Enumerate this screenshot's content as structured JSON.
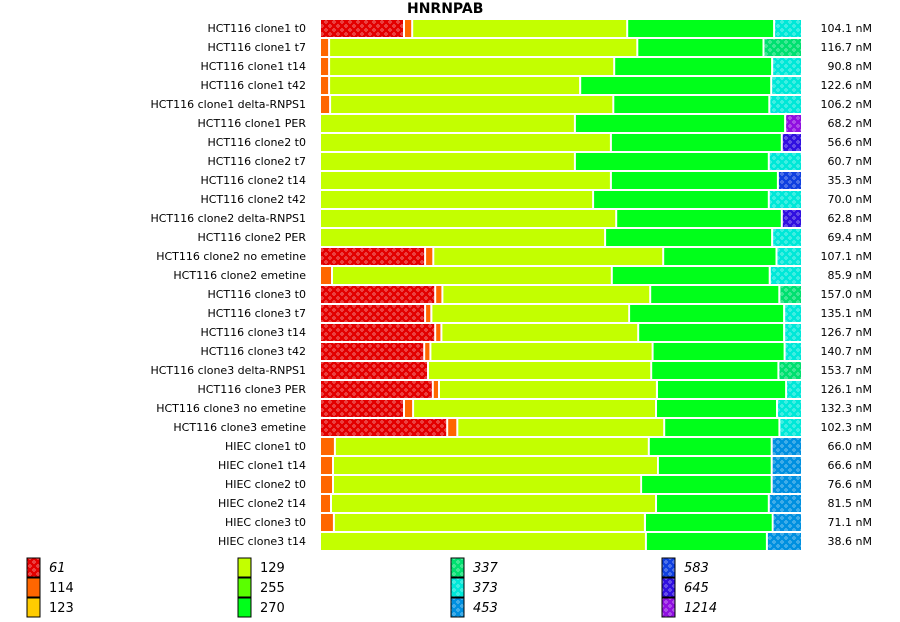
{
  "chart_data": {
    "type": "bar",
    "orientation": "horizontal",
    "stacked": true,
    "normalized": true,
    "title": "HNRNPAB",
    "xlabel": "",
    "ylabel": "",
    "grid": false,
    "legend_position": "bottom",
    "value_unit": "nM",
    "segment_keys": [
      "61",
      "114",
      "123",
      "129",
      "255",
      "270",
      "337",
      "373",
      "453",
      "583",
      "645",
      "1214"
    ],
    "legend": [
      {
        "key": "61",
        "label": "61",
        "color": "#e30000",
        "patterned": true,
        "italic": true
      },
      {
        "key": "114",
        "label": "114",
        "color": "#ff6600",
        "patterned": false,
        "italic": false
      },
      {
        "key": "123",
        "label": "123",
        "color": "#ffcc00",
        "patterned": false,
        "italic": false
      },
      {
        "key": "129",
        "label": "129",
        "color": "#c3ff00",
        "patterned": false,
        "italic": false
      },
      {
        "key": "255",
        "label": "255",
        "color": "#5aff00",
        "patterned": false,
        "italic": false
      },
      {
        "key": "270",
        "label": "270",
        "color": "#00ff1a",
        "patterned": false,
        "italic": false
      },
      {
        "key": "337",
        "label": "337",
        "color": "#00e070",
        "patterned": true,
        "italic": true
      },
      {
        "key": "373",
        "label": "373",
        "color": "#00e8d8",
        "patterned": true,
        "italic": true
      },
      {
        "key": "453",
        "label": "453",
        "color": "#0090e0",
        "patterned": true,
        "italic": true
      },
      {
        "key": "583",
        "label": "583",
        "color": "#1040e0",
        "patterned": true,
        "italic": true
      },
      {
        "key": "645",
        "label": "645",
        "color": "#3010e0",
        "patterned": true,
        "italic": true
      },
      {
        "key": "1214",
        "label": "1214",
        "color": "#9010e0",
        "patterned": true,
        "italic": true
      }
    ],
    "categories": [
      "HCT116 clone1 t0",
      "HCT116 clone1 t7",
      "HCT116 clone1 t14",
      "HCT116 clone1 t42",
      "HCT116 clone1 delta-RNPS1",
      "HCT116 clone1 PER",
      "HCT116 clone2 t0",
      "HCT116 clone2 t7",
      "HCT116 clone2 t14",
      "HCT116 clone2 t42",
      "HCT116 clone2 delta-RNPS1",
      "HCT116 clone2 PER",
      "HCT116 clone2 no emetine",
      "HCT116 clone2 emetine",
      "HCT116 clone3 t0",
      "HCT116 clone3 t7",
      "HCT116 clone3 t14",
      "HCT116 clone3 t42",
      "HCT116 clone3 delta-RNPS1",
      "HCT116 clone3 PER",
      "HCT116 clone3 no emetine",
      "HCT116 clone3 emetine",
      "HIEC clone1 t0",
      "HIEC clone1 t14",
      "HIEC clone2 t0",
      "HIEC clone2 t14",
      "HIEC clone3 t0",
      "HIEC clone3 t14"
    ],
    "totals": [
      "104.1 nM",
      "116.7 nM",
      "90.8 nM",
      "122.6 nM",
      "106.2 nM",
      "68.2 nM",
      "56.6 nM",
      "60.7 nM",
      "35.3 nM",
      "70.0 nM",
      "62.8 nM",
      "69.4 nM",
      "107.1 nM",
      "85.9 nM",
      "157.0 nM",
      "135.1 nM",
      "126.7 nM",
      "140.7 nM",
      "153.7 nM",
      "126.1 nM",
      "132.3 nM",
      "102.3 nM",
      "66.0 nM",
      "66.6 nM",
      "76.6 nM",
      "81.5 nM",
      "71.1 nM",
      "38.6 nM"
    ],
    "rows": [
      [
        {
          "k": "61",
          "f": 0.175
        },
        {
          "k": "114",
          "f": 0.017
        },
        {
          "k": "129",
          "f": 0.448
        },
        {
          "k": "270",
          "f": 0.306
        },
        {
          "k": "373",
          "f": 0.054
        }
      ],
      [
        {
          "k": "114",
          "f": 0.019
        },
        {
          "k": "129",
          "f": 0.642
        },
        {
          "k": "270",
          "f": 0.263
        },
        {
          "k": "337",
          "f": 0.076
        }
      ],
      [
        {
          "k": "114",
          "f": 0.019
        },
        {
          "k": "129",
          "f": 0.594
        },
        {
          "k": "270",
          "f": 0.329
        },
        {
          "k": "373",
          "f": 0.058
        }
      ],
      [
        {
          "k": "114",
          "f": 0.019
        },
        {
          "k": "129",
          "f": 0.523
        },
        {
          "k": "270",
          "f": 0.398
        },
        {
          "k": "373",
          "f": 0.06
        }
      ],
      [
        {
          "k": "114",
          "f": 0.021
        },
        {
          "k": "129",
          "f": 0.59
        },
        {
          "k": "270",
          "f": 0.325
        },
        {
          "k": "373",
          "f": 0.064
        }
      ],
      [
        {
          "k": "129",
          "f": 0.531
        },
        {
          "k": "270",
          "f": 0.438
        },
        {
          "k": "1214",
          "f": 0.031
        }
      ],
      [
        {
          "k": "129",
          "f": 0.606
        },
        {
          "k": "270",
          "f": 0.356
        },
        {
          "k": "645",
          "f": 0.038
        }
      ],
      [
        {
          "k": "129",
          "f": 0.531
        },
        {
          "k": "270",
          "f": 0.404
        },
        {
          "k": "373",
          "f": 0.065
        }
      ],
      [
        {
          "k": "129",
          "f": 0.606
        },
        {
          "k": "270",
          "f": 0.348
        },
        {
          "k": "583",
          "f": 0.046
        }
      ],
      [
        {
          "k": "129",
          "f": 0.569
        },
        {
          "k": "270",
          "f": 0.366
        },
        {
          "k": "373",
          "f": 0.065
        }
      ],
      [
        {
          "k": "129",
          "f": 0.617
        },
        {
          "k": "270",
          "f": 0.345
        },
        {
          "k": "645",
          "f": 0.038
        }
      ],
      [
        {
          "k": "129",
          "f": 0.594
        },
        {
          "k": "270",
          "f": 0.348
        },
        {
          "k": "373",
          "f": 0.058
        }
      ],
      [
        {
          "k": "61",
          "f": 0.219
        },
        {
          "k": "114",
          "f": 0.017
        },
        {
          "k": "129",
          "f": 0.479
        },
        {
          "k": "270",
          "f": 0.236
        },
        {
          "k": "373",
          "f": 0.049
        }
      ],
      [
        {
          "k": "114",
          "f": 0.025
        },
        {
          "k": "129",
          "f": 0.583
        },
        {
          "k": "270",
          "f": 0.329
        },
        {
          "k": "373",
          "f": 0.063
        }
      ],
      [
        {
          "k": "61",
          "f": 0.24
        },
        {
          "k": "114",
          "f": 0.015
        },
        {
          "k": "129",
          "f": 0.433
        },
        {
          "k": "270",
          "f": 0.269
        },
        {
          "k": "337",
          "f": 0.043
        }
      ],
      [
        {
          "k": "61",
          "f": 0.219
        },
        {
          "k": "114",
          "f": 0.013
        },
        {
          "k": "129",
          "f": 0.412
        },
        {
          "k": "270",
          "f": 0.323
        },
        {
          "k": "373",
          "f": 0.033
        }
      ],
      [
        {
          "k": "61",
          "f": 0.24
        },
        {
          "k": "114",
          "f": 0.013
        },
        {
          "k": "129",
          "f": 0.41
        },
        {
          "k": "270",
          "f": 0.304
        },
        {
          "k": "373",
          "f": 0.033
        }
      ],
      [
        {
          "k": "61",
          "f": 0.217
        },
        {
          "k": "114",
          "f": 0.013
        },
        {
          "k": "129",
          "f": 0.463
        },
        {
          "k": "270",
          "f": 0.275
        },
        {
          "k": "373",
          "f": 0.032
        }
      ],
      [
        {
          "k": "61",
          "f": 0.225
        },
        {
          "k": "129",
          "f": 0.465
        },
        {
          "k": "270",
          "f": 0.265
        },
        {
          "k": "337",
          "f": 0.045
        }
      ],
      [
        {
          "k": "61",
          "f": 0.235
        },
        {
          "k": "114",
          "f": 0.013
        },
        {
          "k": "129",
          "f": 0.454
        },
        {
          "k": "270",
          "f": 0.269
        },
        {
          "k": "373",
          "f": 0.029
        }
      ],
      [
        {
          "k": "61",
          "f": 0.175
        },
        {
          "k": "114",
          "f": 0.019
        },
        {
          "k": "129",
          "f": 0.506
        },
        {
          "k": "270",
          "f": 0.252
        },
        {
          "k": "373",
          "f": 0.048
        }
      ],
      [
        {
          "k": "61",
          "f": 0.265
        },
        {
          "k": "114",
          "f": 0.021
        },
        {
          "k": "129",
          "f": 0.431
        },
        {
          "k": "270",
          "f": 0.24
        },
        {
          "k": "373",
          "f": 0.043
        }
      ],
      [
        {
          "k": "114",
          "f": 0.031
        },
        {
          "k": "129",
          "f": 0.654
        },
        {
          "k": "270",
          "f": 0.256
        },
        {
          "k": "453",
          "f": 0.059
        }
      ],
      [
        {
          "k": "114",
          "f": 0.027
        },
        {
          "k": "129",
          "f": 0.677
        },
        {
          "k": "270",
          "f": 0.237
        },
        {
          "k": "453",
          "f": 0.059
        }
      ],
      [
        {
          "k": "114",
          "f": 0.027
        },
        {
          "k": "129",
          "f": 0.642
        },
        {
          "k": "270",
          "f": 0.272
        },
        {
          "k": "453",
          "f": 0.059
        }
      ],
      [
        {
          "k": "114",
          "f": 0.023
        },
        {
          "k": "129",
          "f": 0.677
        },
        {
          "k": "270",
          "f": 0.235
        },
        {
          "k": "453",
          "f": 0.065
        }
      ],
      [
        {
          "k": "114",
          "f": 0.029
        },
        {
          "k": "129",
          "f": 0.648
        },
        {
          "k": "270",
          "f": 0.266
        },
        {
          "k": "453",
          "f": 0.057
        }
      ],
      [
        {
          "k": "129",
          "f": 0.679
        },
        {
          "k": "270",
          "f": 0.252
        },
        {
          "k": "453",
          "f": 0.069
        }
      ]
    ]
  }
}
